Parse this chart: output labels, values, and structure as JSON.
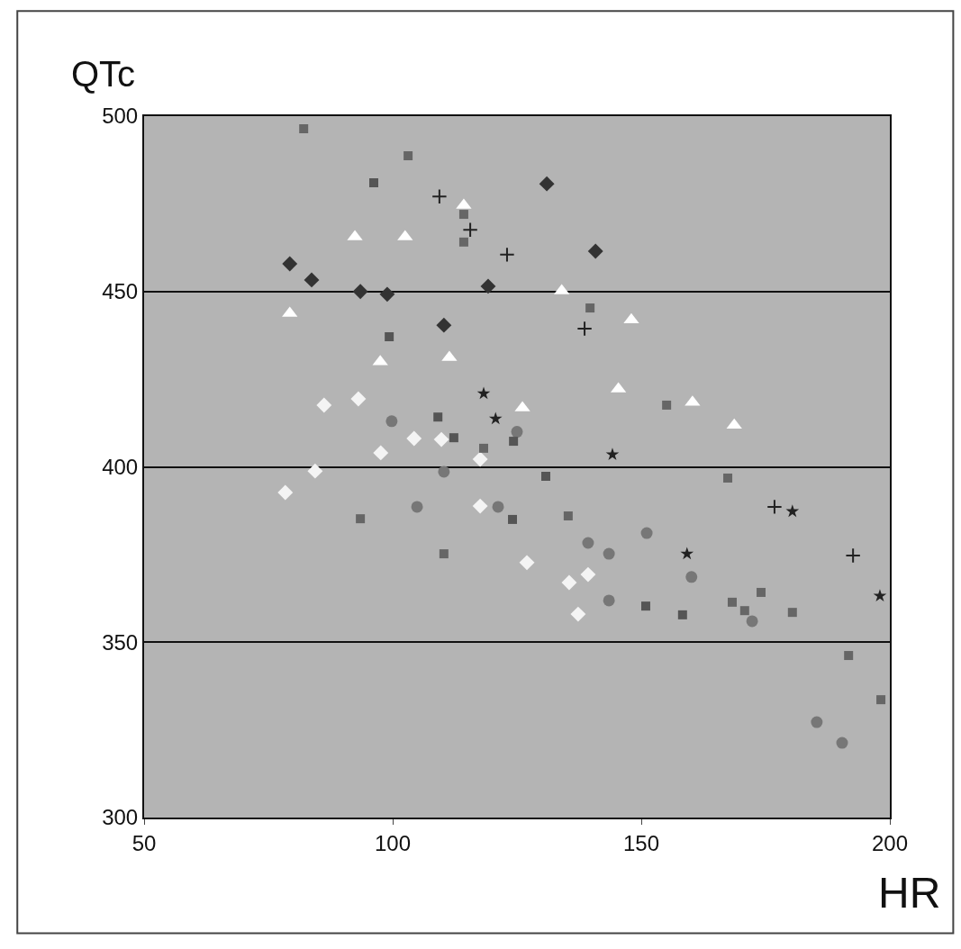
{
  "chart_data": {
    "type": "scatter",
    "xlabel": "HR",
    "ylabel": "QTc",
    "xlim": [
      50,
      200
    ],
    "xticks": [
      50,
      100,
      150,
      200
    ],
    "ylim": [
      300,
      500
    ],
    "yticks": [
      300,
      350,
      400,
      450,
      500
    ],
    "grid": "y",
    "series": [
      {
        "marker": "diamond",
        "color": "#333333",
        "x": [
          79.3,
          83.7,
          93.5,
          98.9,
          110.3,
          119.2,
          131,
          140.8
        ],
        "values": [
          457.9,
          453.3,
          450,
          449.2,
          440.4,
          451.5,
          480.7,
          461.5
        ]
      },
      {
        "marker": "triangle",
        "color": "#ffffff",
        "x": [
          79.3,
          92.4,
          102.5,
          114.3,
          111.4,
          97.5,
          126.1,
          134,
          148,
          145.4,
          160.3,
          168.7
        ],
        "values": [
          443.8,
          465.6,
          465.6,
          474.6,
          431.2,
          430,
          416.8,
          450.2,
          441.9,
          422.2,
          418.4,
          411.9
        ]
      },
      {
        "marker": "circle",
        "color": "#777777",
        "x": [
          99.8,
          110.3,
          104.9,
          121.2,
          125,
          151.1,
          143.5,
          160.1,
          143.5,
          172.3,
          185.3,
          190.4,
          139.3
        ],
        "values": [
          413,
          398.6,
          388.6,
          388.6,
          410,
          381.1,
          375.2,
          368.6,
          361.9,
          356,
          327.2,
          321.3,
          378.3
        ]
      },
      {
        "marker": "square",
        "color": "#555555",
        "x": [
          99.3,
          109.1,
          112.3,
          124.3,
          130.8,
          124.1,
          150.9,
          158.3,
          96.2
        ],
        "values": [
          437.1,
          414.2,
          408.3,
          407.3,
          397.3,
          385,
          360.3,
          357.8,
          481
        ]
      },
      {
        "marker": "diamond",
        "color": "#f4f4f4",
        "x": [
          86.2,
          93.1,
          104.3,
          109.8,
          97.6,
          78.4,
          84.4,
          117.6,
          127,
          135.5,
          139.3,
          137.3,
          117.6
        ],
        "values": [
          417.6,
          419.4,
          408.1,
          407.8,
          404,
          392.7,
          398.8,
          388.8,
          372.7,
          367,
          369.3,
          358,
          402.2
        ]
      },
      {
        "marker": "cross",
        "color": "#222222",
        "x": [
          109.4,
          115.6,
          123,
          138.6,
          176.8,
          192.6
        ],
        "values": [
          477.1,
          467.6,
          460.5,
          439.4,
          388.6,
          374.7
        ]
      },
      {
        "marker": "star",
        "color": "#222222",
        "x": [
          118.3,
          120.7,
          144.2,
          159.2,
          180.4,
          198
        ],
        "values": [
          420.9,
          413.7,
          403.5,
          375.2,
          387.3,
          363.2
        ]
      },
      {
        "marker": "square",
        "color": "#666666",
        "x": [
          82.1,
          103.1,
          114.3,
          114.3,
          118.3,
          139.7,
          155.1,
          93.5,
          110.3,
          167.4,
          135.3,
          168.3,
          174.1,
          170.8,
          180.4,
          191.7,
          198.2
        ],
        "values": [
          496.4,
          488.7,
          472,
          464.1,
          405.3,
          445.3,
          417.6,
          385.2,
          375.2,
          396.8,
          386,
          361.4,
          364.2,
          359,
          358.5,
          346.2,
          333.6
        ]
      }
    ]
  }
}
